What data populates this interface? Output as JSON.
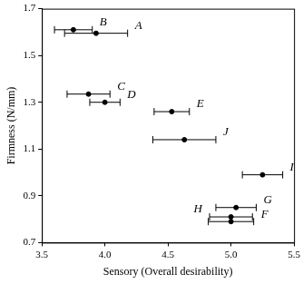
{
  "chart_data": {
    "type": "scatter",
    "x_label": "Sensory (Overall desirability)",
    "y_label": "Firmness (N/mm)",
    "labels": [
      "B",
      "A",
      "C",
      "D",
      "E",
      "J",
      "I",
      "G",
      "H",
      "F"
    ],
    "x": [
      3.75,
      3.93,
      3.87,
      4.0,
      4.53,
      4.63,
      5.25,
      5.04,
      5.0,
      5.0
    ],
    "values": [
      1.61,
      1.595,
      1.335,
      1.3,
      1.26,
      1.14,
      0.99,
      0.85,
      0.81,
      0.79
    ],
    "x_error": [
      0.15,
      0.25,
      0.17,
      0.12,
      0.14,
      0.25,
      0.16,
      0.16,
      0.17,
      0.18
    ],
    "color": "#000000",
    "marker": "circle",
    "xlim": [
      3.5,
      5.5
    ],
    "xticks": [
      3.5,
      {
        "value": 4.0,
        "label": "4.0"
      },
      4.5,
      {
        "value": 5.0,
        "label": "5.0"
      },
      5.5
    ],
    "ylim": [
      0.7,
      1.7
    ],
    "yticks": [
      0.7,
      0.9,
      1.1,
      1.3,
      1.5,
      1.7
    ],
    "grid": false
  }
}
